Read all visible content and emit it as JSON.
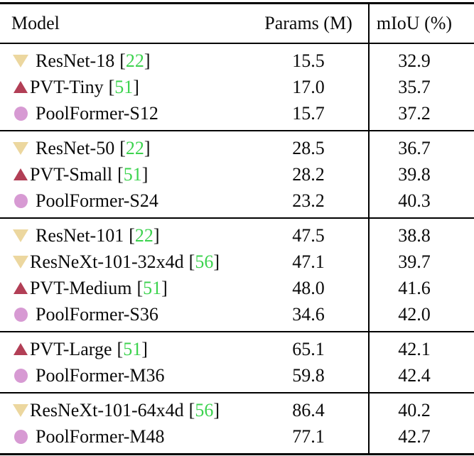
{
  "table": {
    "columns": [
      "Model",
      "Params (M)",
      "mIoU (%)"
    ],
    "cite_open": "[",
    "cite_close": "]",
    "colors": {
      "triangle_down": "#ecd79f",
      "triangle_up": "#b23f56",
      "circle": "#d79ad3",
      "citation": "#3dd34f",
      "text": "#0b0b0b",
      "rule": "#000000",
      "background": "#ffffff"
    },
    "groups": [
      {
        "rows": [
          {
            "icon": "triangle-down",
            "gap": true,
            "model": "ResNet-18",
            "cite": "22",
            "params": "15.5",
            "miou": "32.9"
          },
          {
            "icon": "triangle-up",
            "gap": false,
            "model": "PVT-Tiny",
            "cite": "51",
            "params": "17.0",
            "miou": "35.7"
          },
          {
            "icon": "circle",
            "gap": true,
            "model": "PoolFormer-S12",
            "cite": null,
            "params": "15.7",
            "miou": "37.2"
          }
        ]
      },
      {
        "rows": [
          {
            "icon": "triangle-down",
            "gap": true,
            "model": "ResNet-50",
            "cite": "22",
            "params": "28.5",
            "miou": "36.7"
          },
          {
            "icon": "triangle-up",
            "gap": false,
            "model": "PVT-Small",
            "cite": "51",
            "params": "28.2",
            "miou": "39.8"
          },
          {
            "icon": "circle",
            "gap": true,
            "model": "PoolFormer-S24",
            "cite": null,
            "params": "23.2",
            "miou": "40.3"
          }
        ]
      },
      {
        "rows": [
          {
            "icon": "triangle-down",
            "gap": true,
            "model": "ResNet-101",
            "cite": "22",
            "params": "47.5",
            "miou": "38.8"
          },
          {
            "icon": "triangle-down",
            "gap": false,
            "model": "ResNeXt-101-32x4d",
            "cite": "56",
            "params": "47.1",
            "miou": "39.7"
          },
          {
            "icon": "triangle-up",
            "gap": false,
            "model": "PVT-Medium",
            "cite": "51",
            "params": "48.0",
            "miou": "41.6"
          },
          {
            "icon": "circle",
            "gap": true,
            "model": "PoolFormer-S36",
            "cite": null,
            "params": "34.6",
            "miou": "42.0"
          }
        ]
      },
      {
        "rows": [
          {
            "icon": "triangle-up",
            "gap": false,
            "model": "PVT-Large",
            "cite": "51",
            "params": "65.1",
            "miou": "42.1"
          },
          {
            "icon": "circle",
            "gap": true,
            "model": "PoolFormer-M36",
            "cite": null,
            "params": "59.8",
            "miou": "42.4"
          }
        ]
      },
      {
        "rows": [
          {
            "icon": "triangle-down",
            "gap": false,
            "model": "ResNeXt-101-64x4d",
            "cite": "56",
            "params": "86.4",
            "miou": "40.2"
          },
          {
            "icon": "circle",
            "gap": true,
            "model": "PoolFormer-M48",
            "cite": null,
            "params": "77.1",
            "miou": "42.7"
          }
        ]
      }
    ]
  }
}
